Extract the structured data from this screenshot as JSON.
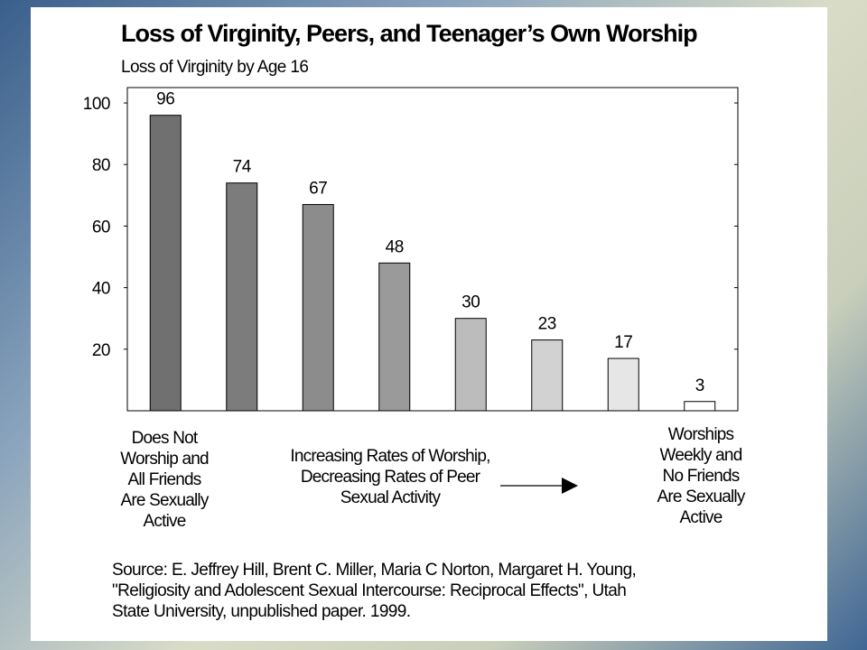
{
  "title": "Loss of Virginity, Peers, and Teenager’s Own Worship",
  "subtitle": "Loss of Virginity by Age 16",
  "chart_data": {
    "type": "bar",
    "title": "Loss of Virginity, Peers, and Teenager’s Own Worship",
    "subtitle": "Loss of Virginity by Age 16",
    "categories": [
      "",
      "",
      "",
      "",
      "",
      "",
      "",
      ""
    ],
    "values": [
      96,
      74,
      67,
      48,
      30,
      23,
      17,
      3
    ],
    "data_labels": [
      "96",
      "74",
      "67",
      "48",
      "30",
      "23",
      "17",
      "3"
    ],
    "bar_colors": [
      "#707070",
      "#7c7c7c",
      "#8c8c8c",
      "#9a9a9a",
      "#bcbcbc",
      "#d2d2d2",
      "#e6e6e6",
      "#ffffff"
    ],
    "ylim": [
      0,
      105
    ],
    "yticks": [
      20,
      40,
      60,
      80,
      100
    ],
    "ytick_labels": [
      "20",
      "40",
      "60",
      "80",
      "100"
    ],
    "grid": false,
    "legend": "none"
  },
  "captions": {
    "left": [
      "Does Not",
      "Worship and",
      "All Friends",
      "Are Sexually",
      "Active"
    ],
    "middle": [
      "Increasing Rates of Worship,",
      "Decreasing Rates of Peer",
      "Sexual Activity"
    ],
    "right": [
      "Worships",
      "Weekly and",
      "No Friends",
      "Are Sexually",
      "Active"
    ]
  },
  "source": {
    "lines": [
      "Source: E. Jeffrey Hill, Brent C. Miller, Maria C Norton, Margaret H. Young,",
      "\"Religiosity and Adolescent Sexual Intercourse:  Reciprocal Effects\", Utah",
      "State University, unpublished paper.  1999."
    ]
  }
}
